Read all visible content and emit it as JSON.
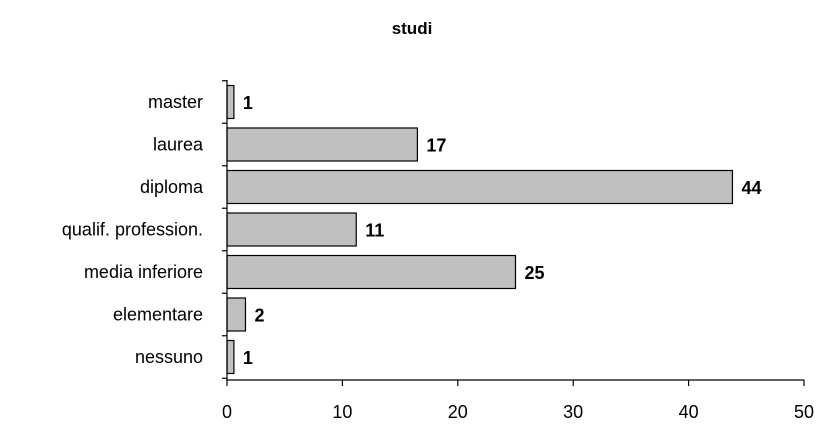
{
  "chart_data": {
    "type": "bar",
    "orientation": "horizontal",
    "title": "studi",
    "xlabel": "",
    "ylabel": "",
    "categories": [
      "master",
      "laurea",
      "diploma",
      "qualif. profession.",
      "media inferiore",
      "elementare",
      "nessuno"
    ],
    "values": [
      1,
      17,
      44,
      11,
      25,
      2,
      1
    ],
    "bar_lengths": [
      0.6,
      16.5,
      43.8,
      11.2,
      25.0,
      1.6,
      0.6
    ],
    "xlim": [
      0,
      50
    ],
    "xticks": [
      0,
      10,
      20,
      30,
      40,
      50
    ],
    "grid": false,
    "legend": "none",
    "colors": {
      "bar_fill": "#c0c0c0",
      "bar_stroke": "#000000",
      "axis": "#000000"
    }
  }
}
